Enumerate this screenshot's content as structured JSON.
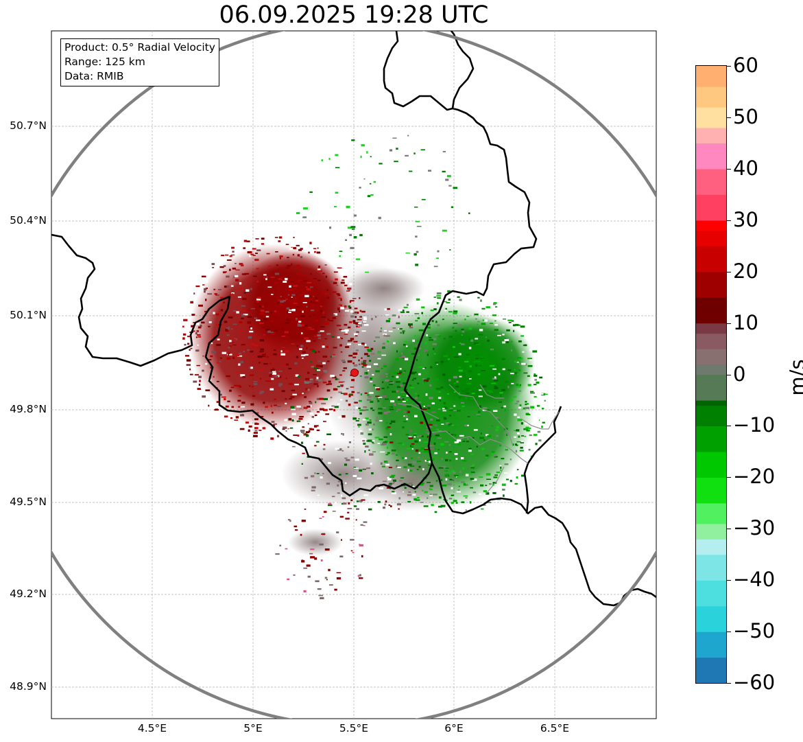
{
  "map": {
    "title": "06.09.2025 19:28 UTC",
    "info": {
      "product": "Product: 0.5° Radial Velocity",
      "range": "Range: 125 km",
      "source": "Data: RMIB"
    },
    "lat_ticks": [
      "50.7°N",
      "50.4°N",
      "50.1°N",
      "49.8°N",
      "49.5°N",
      "49.2°N",
      "48.9°N"
    ],
    "lon_ticks": [
      "4.5°E",
      "5°E",
      "5.5°E",
      "6°E",
      "6.5°E"
    ],
    "radar_site": "radar-location",
    "range_ring_color": "#808080"
  },
  "colorbar": {
    "unit": "m/s",
    "ticks": [
      "60",
      "50",
      "40",
      "30",
      "20",
      "10",
      "0",
      "−10",
      "−20",
      "−30",
      "−40",
      "−50",
      "−60"
    ],
    "min": -60,
    "max": 60,
    "stops": [
      {
        "v": -60,
        "c": "#1f77b4"
      },
      {
        "v": -55,
        "c": "#1fa6cf"
      },
      {
        "v": -50,
        "c": "#2ad3dc"
      },
      {
        "v": -45,
        "c": "#4ddfe0"
      },
      {
        "v": -40,
        "c": "#7ee5e6"
      },
      {
        "v": -35,
        "c": "#b5eeee"
      },
      {
        "v": -32,
        "c": "#90f0a0"
      },
      {
        "v": -29,
        "c": "#50f060"
      },
      {
        "v": -25,
        "c": "#10e010"
      },
      {
        "v": -20,
        "c": "#00c800"
      },
      {
        "v": -15,
        "c": "#00a000"
      },
      {
        "v": -10,
        "c": "#008000"
      },
      {
        "v": -6,
        "c": "#006400"
      },
      {
        "v": -5,
        "c": "#557a55"
      },
      {
        "v": 0,
        "c": "#6e7a6e"
      },
      {
        "v": 2,
        "c": "#887070"
      },
      {
        "v": 5,
        "c": "#8a5a62"
      },
      {
        "v": 8,
        "c": "#7a3a45"
      },
      {
        "v": 10,
        "c": "#6e0000"
      },
      {
        "v": 15,
        "c": "#9e0000"
      },
      {
        "v": 20,
        "c": "#c80000"
      },
      {
        "v": 25,
        "c": "#e60000"
      },
      {
        "v": 28,
        "c": "#ff0000"
      },
      {
        "v": 30,
        "c": "#ff4060"
      },
      {
        "v": 35,
        "c": "#ff6080"
      },
      {
        "v": 40,
        "c": "#ff88c0"
      },
      {
        "v": 45,
        "c": "#ffb0b0"
      },
      {
        "v": 48,
        "c": "#ffe0a0"
      },
      {
        "v": 52,
        "c": "#ffc880"
      },
      {
        "v": 56,
        "c": "#ffb070"
      },
      {
        "v": 60,
        "c": "#ff9a50"
      }
    ]
  }
}
